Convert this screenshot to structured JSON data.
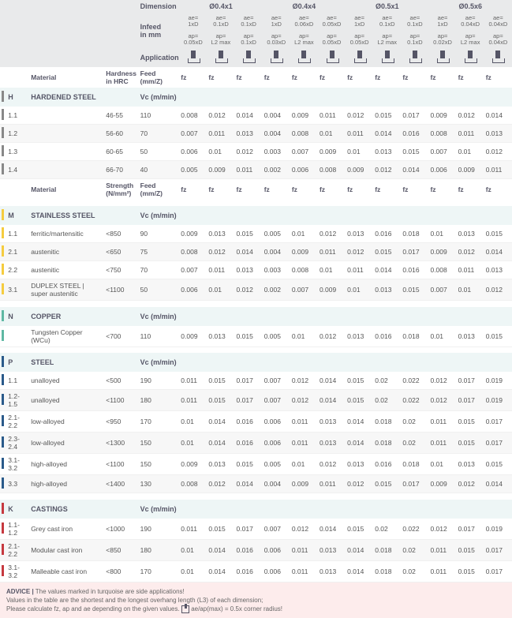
{
  "header": {
    "labels": {
      "dimension": "Dimension",
      "infeed": "Infeed\nin mm",
      "application": "Application",
      "material": "Material",
      "hardness": "Hardness\nin HRC",
      "strength": "Strength\n(N/mm²)",
      "feed": "Feed (mm/Z)",
      "vc": "Vc (m/min)",
      "fz": "fz"
    },
    "dimGroups": [
      "Ø0.4x1",
      "Ø0.4x4",
      "Ø0.5x1",
      "Ø0.5x6"
    ],
    "aeCells": [
      {
        "t": "ae=",
        "b": "1xD"
      },
      {
        "t": "ae=",
        "b": "0.1xD"
      },
      {
        "t": "ae=",
        "b": "0.1xD"
      },
      {
        "t": "ae=",
        "b": "1xD"
      },
      {
        "t": "ae=",
        "b": "0.06xD"
      },
      {
        "t": "ae=",
        "b": "0.05xD"
      },
      {
        "t": "ae=",
        "b": "1xD"
      },
      {
        "t": "ae=",
        "b": "0.1xD"
      },
      {
        "t": "ae=",
        "b": "0.1xD"
      },
      {
        "t": "ae=",
        "b": "1xD"
      },
      {
        "t": "ae=",
        "b": "0.04xD"
      },
      {
        "t": "ae=",
        "b": "0.04xD"
      }
    ],
    "apCells": [
      {
        "t": "ap=",
        "b": "0.05xD"
      },
      {
        "t": "ap=",
        "b": "L2 max"
      },
      {
        "t": "ap=",
        "b": "0.1xD"
      },
      {
        "t": "ap=",
        "b": "0.03xD"
      },
      {
        "t": "ap=",
        "b": "L2 max"
      },
      {
        "t": "ap=",
        "b": "0.05xD"
      },
      {
        "t": "ap=",
        "b": "0.05xD"
      },
      {
        "t": "ap=",
        "b": "L2 max"
      },
      {
        "t": "ap=",
        "b": "0.1xD"
      },
      {
        "t": "ap=",
        "b": "0.02xD"
      },
      {
        "t": "ap=",
        "b": "L2 max"
      },
      {
        "t": "ap=",
        "b": "0.04xD"
      }
    ]
  },
  "sections": [
    {
      "code": "H",
      "marker": "H",
      "strengthHdr": "hardness",
      "title": "HARDENED STEEL",
      "rows": [
        {
          "n": "1.1",
          "mat": "",
          "str": "46-55",
          "vc": "110",
          "fz": [
            "0.008",
            "0.012",
            "0.014",
            "0.004",
            "0.009",
            "0.011",
            "0.012",
            "0.015",
            "0.017",
            "0.009",
            "0.012",
            "0.014"
          ]
        },
        {
          "n": "1.2",
          "mat": "",
          "str": "56-60",
          "vc": "70",
          "fz": [
            "0.007",
            "0.011",
            "0.013",
            "0.004",
            "0.008",
            "0.01",
            "0.011",
            "0.014",
            "0.016",
            "0.008",
            "0.011",
            "0.013"
          ]
        },
        {
          "n": "1.3",
          "mat": "",
          "str": "60-65",
          "vc": "50",
          "fz": [
            "0.006",
            "0.01",
            "0.012",
            "0.003",
            "0.007",
            "0.009",
            "0.01",
            "0.013",
            "0.015",
            "0.007",
            "0.01",
            "0.012"
          ]
        },
        {
          "n": "1.4",
          "mat": "",
          "str": "66-70",
          "vc": "40",
          "fz": [
            "0.005",
            "0.009",
            "0.011",
            "0.002",
            "0.006",
            "0.008",
            "0.009",
            "0.012",
            "0.014",
            "0.006",
            "0.009",
            "0.011"
          ]
        }
      ]
    },
    {
      "code": "M",
      "marker": "M",
      "strengthHdr": "strength",
      "title": "STAINLESS STEEL",
      "rows": [
        {
          "n": "1.1",
          "mat": "ferritic/martensitic",
          "str": "<850",
          "vc": "90",
          "fz": [
            "0.009",
            "0.013",
            "0.015",
            "0.005",
            "0.01",
            "0.012",
            "0.013",
            "0.016",
            "0.018",
            "0.01",
            "0.013",
            "0.015"
          ]
        },
        {
          "n": "2.1",
          "mat": "austenitic",
          "str": "<650",
          "vc": "75",
          "fz": [
            "0.008",
            "0.012",
            "0.014",
            "0.004",
            "0.009",
            "0.011",
            "0.012",
            "0.015",
            "0.017",
            "0.009",
            "0.012",
            "0.014"
          ]
        },
        {
          "n": "2.2",
          "mat": "austenitic",
          "str": "<750",
          "vc": "70",
          "fz": [
            "0.007",
            "0.011",
            "0.013",
            "0.003",
            "0.008",
            "0.01",
            "0.011",
            "0.014",
            "0.016",
            "0.008",
            "0.011",
            "0.013"
          ]
        },
        {
          "n": "3.1",
          "mat": "DUPLEX STEEL | super austenitic",
          "str": "<1100",
          "vc": "50",
          "fz": [
            "0.006",
            "0.01",
            "0.012",
            "0.002",
            "0.007",
            "0.009",
            "0.01",
            "0.013",
            "0.015",
            "0.007",
            "0.01",
            "0.012"
          ]
        }
      ]
    },
    {
      "code": "N",
      "marker": "N",
      "strengthHdr": "none",
      "title": "COPPER",
      "rows": [
        {
          "n": "",
          "mat": "Tungsten Copper (WCu)",
          "str": "<700",
          "vc": "110",
          "fz": [
            "0.009",
            "0.013",
            "0.015",
            "0.005",
            "0.01",
            "0.012",
            "0.013",
            "0.016",
            "0.018",
            "0.01",
            "0.013",
            "0.015"
          ]
        }
      ]
    },
    {
      "code": "P",
      "marker": "P",
      "strengthHdr": "none",
      "title": "STEEL",
      "rows": [
        {
          "n": "1.1",
          "mat": "unalloyed",
          "str": "<500",
          "vc": "190",
          "fz": [
            "0.011",
            "0.015",
            "0.017",
            "0.007",
            "0.012",
            "0.014",
            "0.015",
            "0.02",
            "0.022",
            "0.012",
            "0.017",
            "0.019"
          ]
        },
        {
          "n": "1.2-1.5",
          "mat": "unalloyed",
          "str": "<1100",
          "vc": "180",
          "fz": [
            "0.011",
            "0.015",
            "0.017",
            "0.007",
            "0.012",
            "0.014",
            "0.015",
            "0.02",
            "0.022",
            "0.012",
            "0.017",
            "0.019"
          ]
        },
        {
          "n": "2.1-2.2",
          "mat": "low-alloyed",
          "str": "<950",
          "vc": "170",
          "fz": [
            "0.01",
            "0.014",
            "0.016",
            "0.006",
            "0.011",
            "0.013",
            "0.014",
            "0.018",
            "0.02",
            "0.011",
            "0.015",
            "0.017"
          ]
        },
        {
          "n": "2.3-2.4",
          "mat": "low-alloyed",
          "str": "<1300",
          "vc": "150",
          "fz": [
            "0.01",
            "0.014",
            "0.016",
            "0.006",
            "0.011",
            "0.013",
            "0.014",
            "0.018",
            "0.02",
            "0.011",
            "0.015",
            "0.017"
          ]
        },
        {
          "n": "3.1-3.2",
          "mat": "high-alloyed",
          "str": "<1100",
          "vc": "150",
          "fz": [
            "0.009",
            "0.013",
            "0.015",
            "0.005",
            "0.01",
            "0.012",
            "0.013",
            "0.016",
            "0.018",
            "0.01",
            "0.013",
            "0.015"
          ]
        },
        {
          "n": "3.3",
          "mat": "high-alloyed",
          "str": "<1400",
          "vc": "130",
          "fz": [
            "0.008",
            "0.012",
            "0.014",
            "0.004",
            "0.009",
            "0.011",
            "0.012",
            "0.015",
            "0.017",
            "0.009",
            "0.012",
            "0.014"
          ]
        }
      ]
    },
    {
      "code": "K",
      "marker": "K",
      "strengthHdr": "none",
      "title": "CASTINGS",
      "rows": [
        {
          "n": "1.1-1.2",
          "mat": "Grey cast iron",
          "str": "<1000",
          "vc": "190",
          "fz": [
            "0.011",
            "0.015",
            "0.017",
            "0.007",
            "0.012",
            "0.014",
            "0.015",
            "0.02",
            "0.022",
            "0.012",
            "0.017",
            "0.019"
          ]
        },
        {
          "n": "2.1-2.2",
          "mat": "Modular cast iron",
          "str": "<850",
          "vc": "180",
          "fz": [
            "0.01",
            "0.014",
            "0.016",
            "0.006",
            "0.011",
            "0.013",
            "0.014",
            "0.018",
            "0.02",
            "0.011",
            "0.015",
            "0.017"
          ]
        },
        {
          "n": "3.1-3.2",
          "mat": "Malleable cast iron",
          "str": "<800",
          "vc": "170",
          "fz": [
            "0.01",
            "0.014",
            "0.016",
            "0.006",
            "0.011",
            "0.013",
            "0.014",
            "0.018",
            "0.02",
            "0.011",
            "0.015",
            "0.017"
          ]
        }
      ]
    }
  ],
  "advice": {
    "label": "ADVICE |",
    "l1": "The values marked in turquoise are side applications!",
    "l2": "Values in the table are the shortest and the longest overhang length (L3) of each dimension;",
    "l3a": "Please calculate fz, ap and ae depending on the given values.",
    "l3b": "ae/ap(max) = 0.5x corner radius!"
  }
}
